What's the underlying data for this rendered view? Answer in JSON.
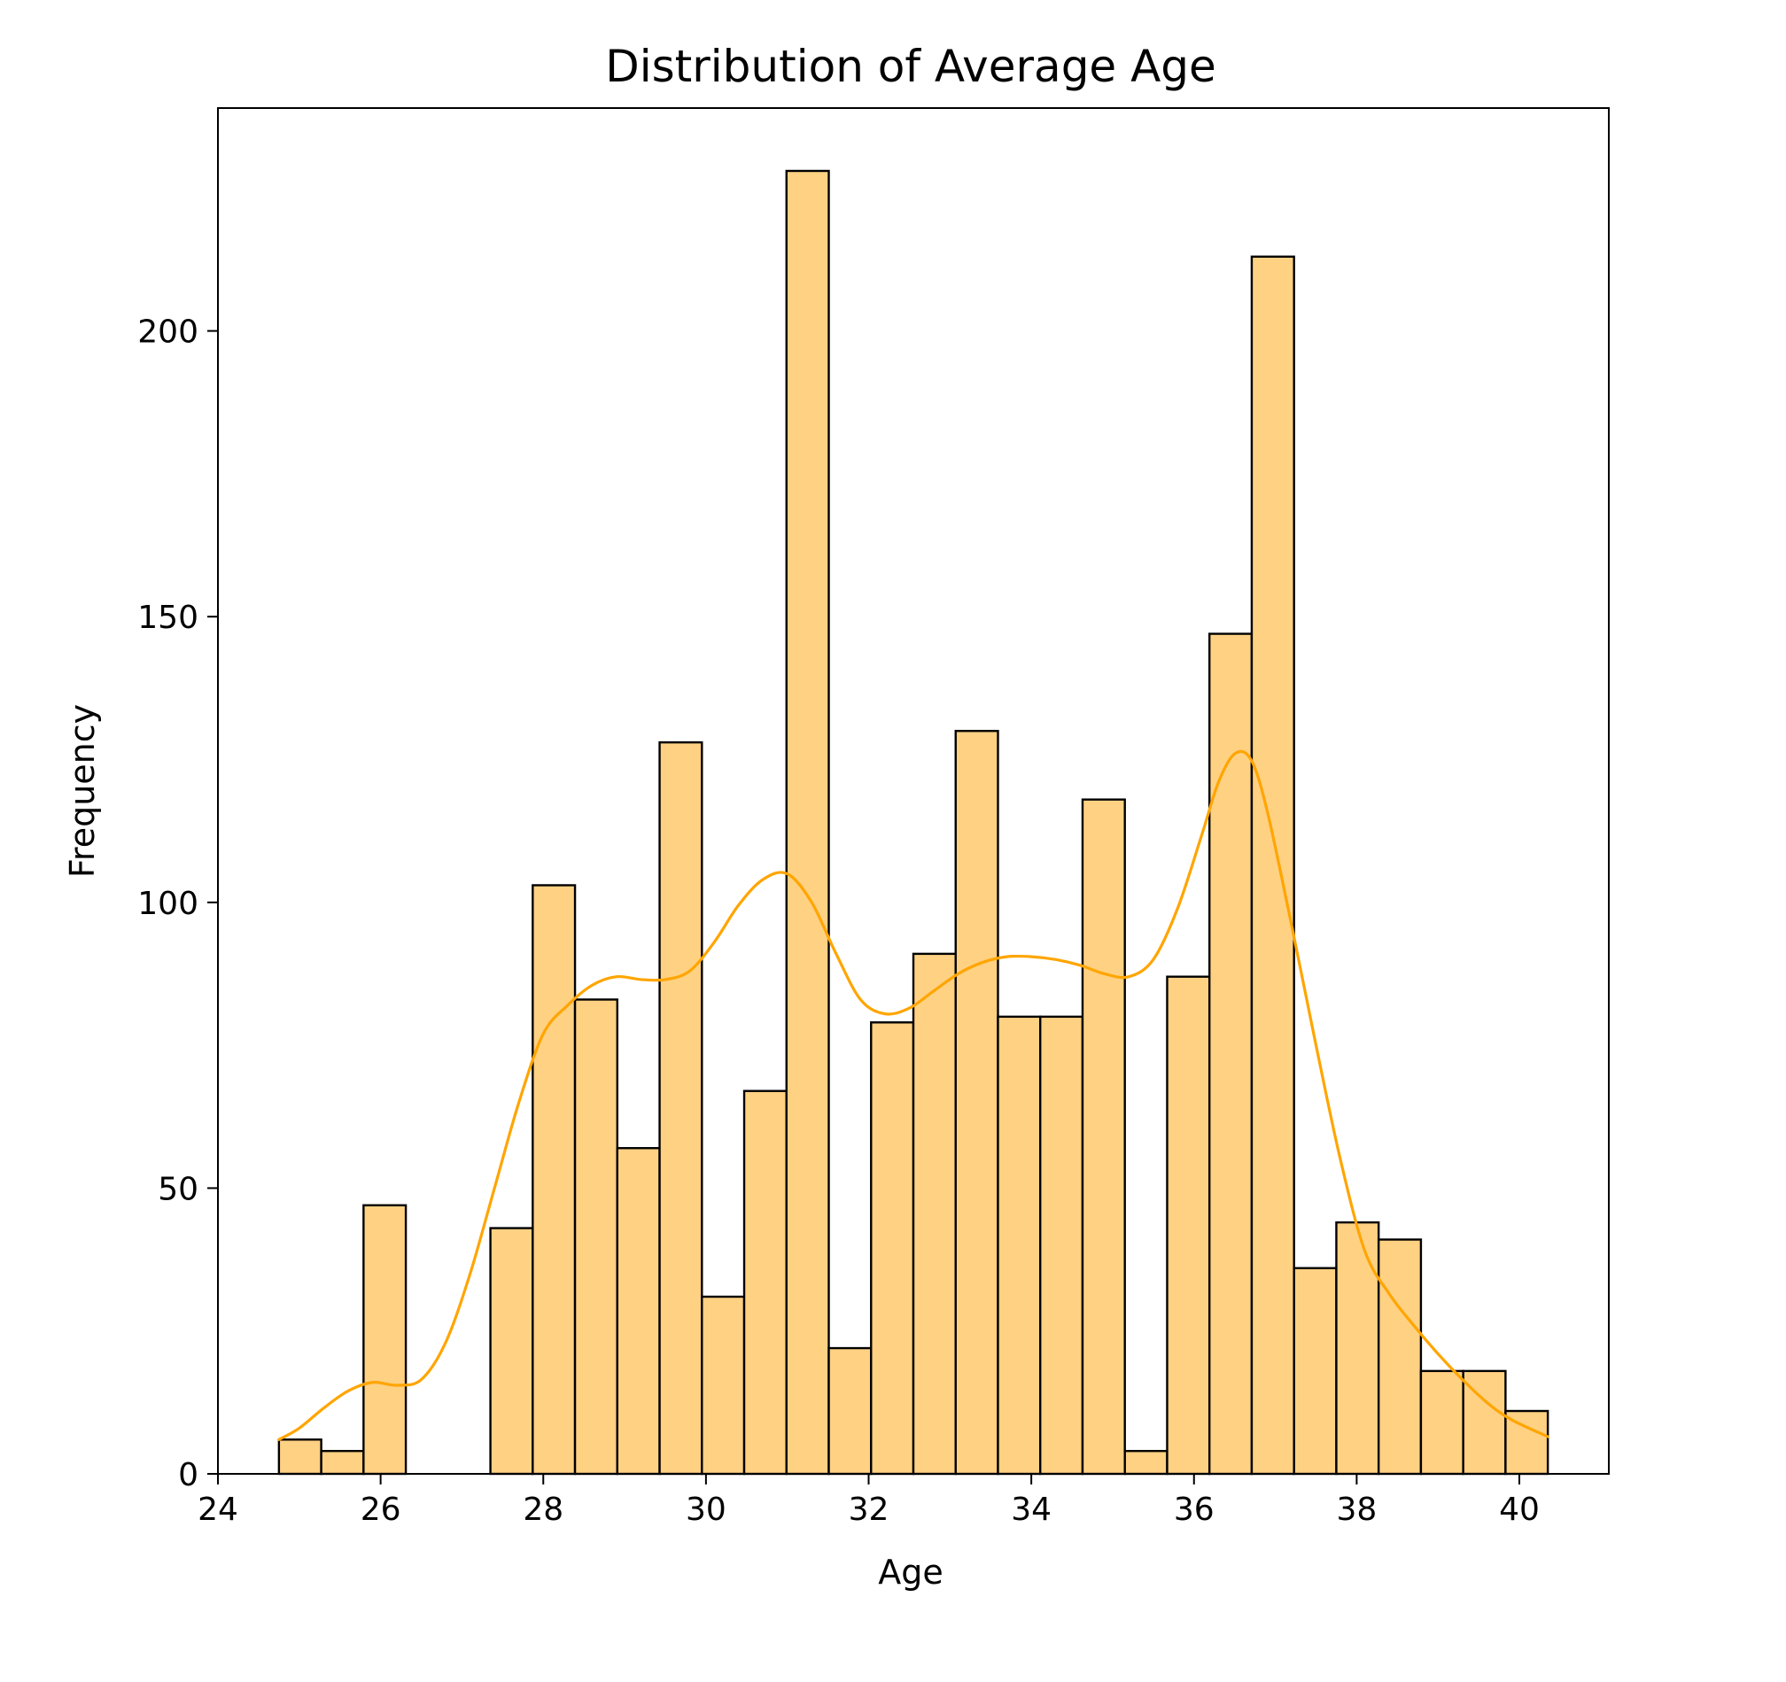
{
  "chart_data": {
    "type": "bar",
    "title": "Distribution of Average Age",
    "xlabel": "Age",
    "ylabel": "Frequency",
    "xlim": [
      24,
      41.1
    ],
    "ylim": [
      0,
      239
    ],
    "x_ticks": [
      24,
      26,
      28,
      30,
      32,
      34,
      36,
      38,
      40
    ],
    "y_ticks": [
      0,
      50,
      100,
      150,
      200
    ],
    "grid": false,
    "bar_color": "#ffd183",
    "edge_color": "#000000",
    "kde_color": "#ffa500",
    "bins": [
      {
        "x0": 24.75,
        "x1": 25.27,
        "count": 6
      },
      {
        "x0": 25.27,
        "x1": 25.79,
        "count": 4
      },
      {
        "x0": 25.79,
        "x1": 26.31,
        "count": 47
      },
      {
        "x0": 26.31,
        "x1": 26.83,
        "count": 0
      },
      {
        "x0": 26.83,
        "x1": 27.35,
        "count": 0
      },
      {
        "x0": 27.35,
        "x1": 27.87,
        "count": 43
      },
      {
        "x0": 27.87,
        "x1": 28.39,
        "count": 103
      },
      {
        "x0": 28.39,
        "x1": 28.91,
        "count": 83
      },
      {
        "x0": 28.91,
        "x1": 29.43,
        "count": 57
      },
      {
        "x0": 29.43,
        "x1": 29.95,
        "count": 128
      },
      {
        "x0": 29.95,
        "x1": 30.47,
        "count": 31
      },
      {
        "x0": 30.47,
        "x1": 30.99,
        "count": 67
      },
      {
        "x0": 30.99,
        "x1": 31.51,
        "count": 228
      },
      {
        "x0": 31.51,
        "x1": 32.03,
        "count": 22
      },
      {
        "x0": 32.03,
        "x1": 32.55,
        "count": 79
      },
      {
        "x0": 32.55,
        "x1": 33.07,
        "count": 91
      },
      {
        "x0": 33.07,
        "x1": 33.59,
        "count": 130
      },
      {
        "x0": 33.59,
        "x1": 34.11,
        "count": 80
      },
      {
        "x0": 34.11,
        "x1": 34.63,
        "count": 80
      },
      {
        "x0": 34.63,
        "x1": 35.15,
        "count": 118
      },
      {
        "x0": 35.15,
        "x1": 35.67,
        "count": 4
      },
      {
        "x0": 35.67,
        "x1": 36.19,
        "count": 87
      },
      {
        "x0": 36.19,
        "x1": 36.71,
        "count": 147
      },
      {
        "x0": 36.71,
        "x1": 37.23,
        "count": 213
      },
      {
        "x0": 37.23,
        "x1": 37.75,
        "count": 36
      },
      {
        "x0": 37.75,
        "x1": 38.27,
        "count": 44
      },
      {
        "x0": 38.27,
        "x1": 38.79,
        "count": 41
      },
      {
        "x0": 38.79,
        "x1": 39.31,
        "count": 18
      },
      {
        "x0": 39.31,
        "x1": 39.83,
        "count": 18
      },
      {
        "x0": 39.83,
        "x1": 40.35,
        "count": 11
      }
    ],
    "kde": {
      "x": [
        24.75,
        25.0,
        25.3,
        25.6,
        25.9,
        26.2,
        26.5,
        26.8,
        27.1,
        27.4,
        27.7,
        28.0,
        28.3,
        28.6,
        28.9,
        29.2,
        29.5,
        29.8,
        30.1,
        30.4,
        30.7,
        31.0,
        31.3,
        31.6,
        31.9,
        32.2,
        32.5,
        32.8,
        33.1,
        33.4,
        33.7,
        34.0,
        34.3,
        34.6,
        34.9,
        35.2,
        35.5,
        35.8,
        36.1,
        36.3,
        36.5,
        36.7,
        36.9,
        37.2,
        37.5,
        37.8,
        38.1,
        38.4,
        38.7,
        39.0,
        39.3,
        39.6,
        39.9,
        40.35
      ],
      "y": [
        6,
        8,
        11.5,
        14.5,
        16,
        15.5,
        16.5,
        23,
        35,
        50,
        65,
        77,
        82,
        85.5,
        87,
        86.5,
        86.5,
        88,
        93,
        99.5,
        104,
        105,
        100,
        91,
        83,
        80.5,
        81.5,
        84.5,
        87.5,
        89.5,
        90.5,
        90.5,
        90,
        89,
        87.5,
        87,
        90,
        99,
        112,
        121,
        126,
        125,
        116,
        96,
        75,
        55,
        39,
        31.5,
        26,
        21,
        16.5,
        12.5,
        9.5,
        6.5
      ]
    }
  }
}
